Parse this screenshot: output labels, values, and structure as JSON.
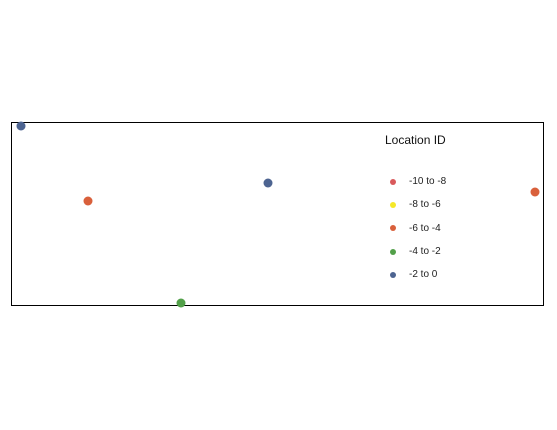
{
  "legend": {
    "title": "Location ID",
    "items": [
      {
        "label": "-10 to -8",
        "color": "#d9595b"
      },
      {
        "label": "-8 to -6",
        "color": "#f5e829"
      },
      {
        "label": "-6 to -4",
        "color": "#d9603b"
      },
      {
        "label": "-4 to -2",
        "color": "#52a049"
      },
      {
        "label": "-2 to 0",
        "color": "#4d6491"
      }
    ]
  },
  "points": [
    {
      "class": "-2 to 0",
      "color": "#4d6491"
    },
    {
      "class": "-6 to -4",
      "color": "#d9603b"
    },
    {
      "class": "-2 to 0",
      "color": "#4d6491"
    },
    {
      "class": "-4 to -2",
      "color": "#52a049"
    },
    {
      "class": "-6 to -4",
      "color": "#d9603b"
    }
  ]
}
